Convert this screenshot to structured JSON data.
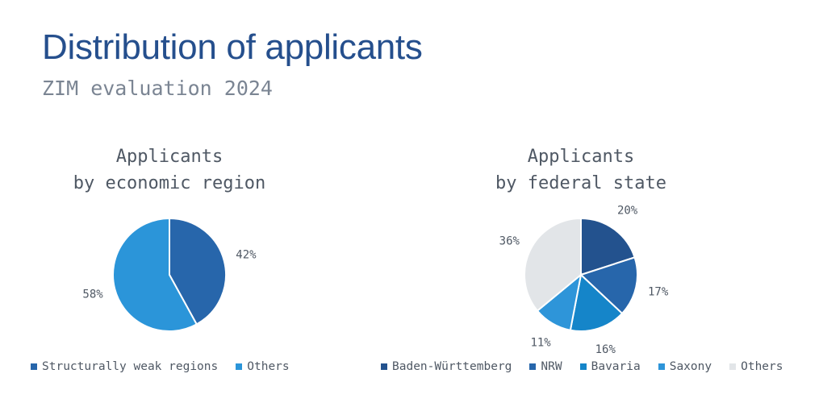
{
  "header": {
    "title": "Distribution of applicants",
    "subtitle": "ZIM evaluation 2024"
  },
  "chart_data": [
    {
      "type": "pie",
      "title_lines": [
        "Applicants",
        "by economic region"
      ],
      "categories": [
        "Structurally weak regions",
        "Others"
      ],
      "values": [
        42,
        58
      ],
      "labels": [
        "42%",
        "58%"
      ],
      "colors": [
        "#2766ab",
        "#2b95d9"
      ],
      "legend_position": "bottom"
    },
    {
      "type": "pie",
      "title_lines": [
        "Applicants",
        "by federal state"
      ],
      "categories": [
        "Baden-Württemberg",
        "NRW",
        "Bavaria",
        "Saxony",
        "Others"
      ],
      "values": [
        20,
        17,
        16,
        11,
        36
      ],
      "labels": [
        "20%",
        "17%",
        "16%",
        "11%",
        "36%"
      ],
      "colors": [
        "#23528e",
        "#2766ab",
        "#1585c9",
        "#2e95d9",
        "#e2e5e8"
      ],
      "legend_position": "bottom"
    }
  ]
}
